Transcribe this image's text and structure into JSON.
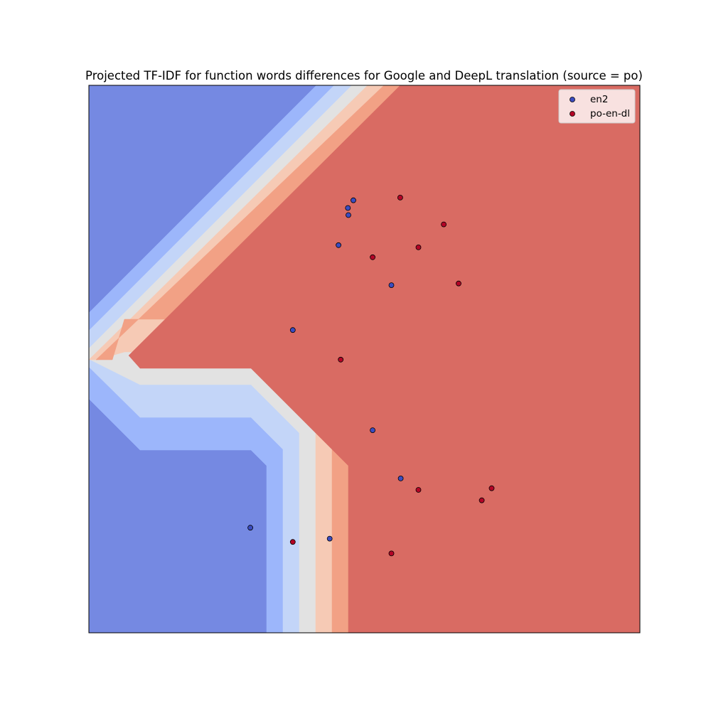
{
  "chart_data": {
    "type": "scatter",
    "title": "Projected TF-IDF for function words differences for Google and DeepL translation (source = po)",
    "xlabel": "",
    "ylabel": "",
    "xticks": "none",
    "yticks": "none",
    "xlim": [
      0,
      1
    ],
    "ylim": [
      0,
      1
    ],
    "grid": false,
    "legend_position": "top-right",
    "background": "filled decision-region contours (coolwarm colormap) splitting the plane between the two classes",
    "colors": {
      "en2": "#3b4cc0",
      "po-en-dl": "#b40426",
      "region_blue": "#7589e2",
      "region_red": "#d96b63",
      "contour_levels": [
        "#7589e2",
        "#9cb6fb",
        "#c3d5f8",
        "#e2e2e2",
        "#f6cab5",
        "#f2a185",
        "#d96b63"
      ]
    },
    "series": [
      {
        "name": "en2",
        "color": "#3b4cc0",
        "points": [
          {
            "x": 0.48,
            "y": 0.79
          },
          {
            "x": 0.47,
            "y": 0.776
          },
          {
            "x": 0.471,
            "y": 0.763
          },
          {
            "x": 0.453,
            "y": 0.708
          },
          {
            "x": 0.549,
            "y": 0.635
          },
          {
            "x": 0.37,
            "y": 0.553
          },
          {
            "x": 0.515,
            "y": 0.37
          },
          {
            "x": 0.566,
            "y": 0.282
          },
          {
            "x": 0.293,
            "y": 0.192
          },
          {
            "x": 0.437,
            "y": 0.172
          }
        ]
      },
      {
        "name": "po-en-dl",
        "color": "#b40426",
        "points": [
          {
            "x": 0.565,
            "y": 0.795
          },
          {
            "x": 0.644,
            "y": 0.746
          },
          {
            "x": 0.598,
            "y": 0.704
          },
          {
            "x": 0.515,
            "y": 0.686
          },
          {
            "x": 0.671,
            "y": 0.638
          },
          {
            "x": 0.457,
            "y": 0.499
          },
          {
            "x": 0.598,
            "y": 0.261
          },
          {
            "x": 0.731,
            "y": 0.264
          },
          {
            "x": 0.713,
            "y": 0.242
          },
          {
            "x": 0.37,
            "y": 0.166
          },
          {
            "x": 0.549,
            "y": 0.145
          }
        ]
      }
    ]
  }
}
